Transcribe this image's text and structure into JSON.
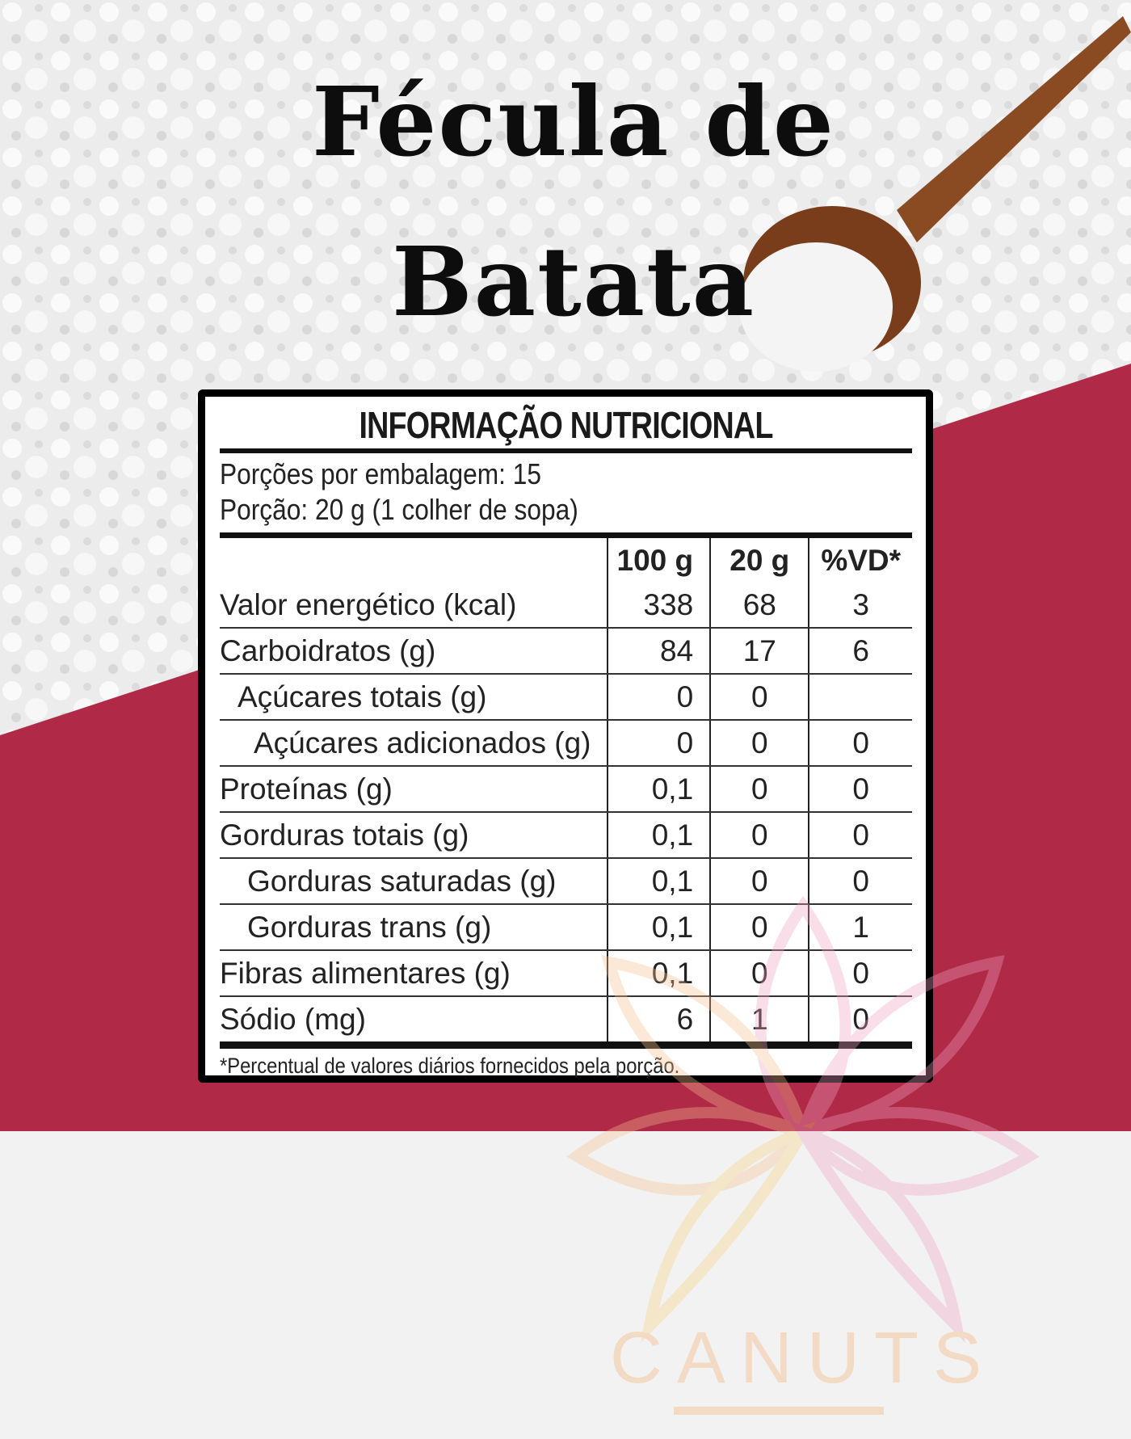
{
  "title": {
    "line1": "Fécula de",
    "line2": "Batata"
  },
  "colors": {
    "crimson": "#b02a48",
    "flour": "#f0f0f0",
    "spoon": "#8a4a22"
  },
  "label": {
    "heading": "INFORMAÇÃO NUTRICIONAL",
    "servings_per_package": "Porções por embalagem: 15",
    "serving_size": "Porção: 20 g (1 colher de sopa)",
    "columns": [
      "",
      "100 g",
      "20 g",
      "%VD*"
    ],
    "rows": [
      [
        "Valor energético (kcal)",
        "338",
        "68",
        "3"
      ],
      [
        "Carboidratos (g)",
        "84",
        "17",
        "6"
      ],
      [
        "Açúcares totais (g)",
        "0",
        "0",
        ""
      ],
      [
        "Açúcares adicionados (g)",
        "0",
        "0",
        "0"
      ],
      [
        "Proteínas (g)",
        "0,1",
        "0",
        "0"
      ],
      [
        "Gorduras totais (g)",
        "0,1",
        "0",
        "0"
      ],
      [
        "Gorduras saturadas (g)",
        "0,1",
        "0",
        "0"
      ],
      [
        "Gorduras trans (g)",
        "0,1",
        "0",
        "1"
      ],
      [
        "Fibras alimentares (g)",
        "0,1",
        "0",
        "0"
      ],
      [
        "Sódio (mg)",
        "6",
        "1",
        "0"
      ]
    ],
    "footnote": "*Percentual de valores diários fornecidos pela porção."
  },
  "watermark": {
    "text": "CANUTS®"
  }
}
